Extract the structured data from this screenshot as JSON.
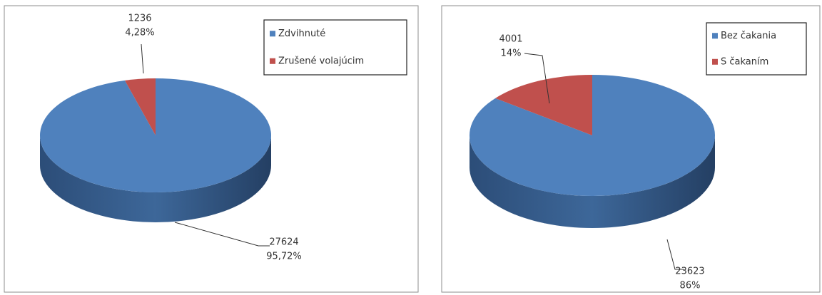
{
  "chart_data": [
    {
      "type": "pie3d",
      "categories": [
        "Zdvihnuté",
        "Zrušené volajúcim"
      ],
      "values": [
        27624,
        1236
      ],
      "percentages": [
        95.72,
        4.28
      ],
      "percentage_labels": [
        "95,72%",
        "4,28%"
      ],
      "colors": [
        "#4f81bd",
        "#c0504d"
      ],
      "legend": "top-right"
    },
    {
      "type": "pie3d",
      "categories": [
        "Bez čakania",
        "S čakaním"
      ],
      "values": [
        23623,
        4001
      ],
      "percentages": [
        86,
        14
      ],
      "percentage_labels": [
        "86%",
        "14%"
      ],
      "colors": [
        "#4f81bd",
        "#c0504d"
      ],
      "legend": "top-right"
    }
  ]
}
